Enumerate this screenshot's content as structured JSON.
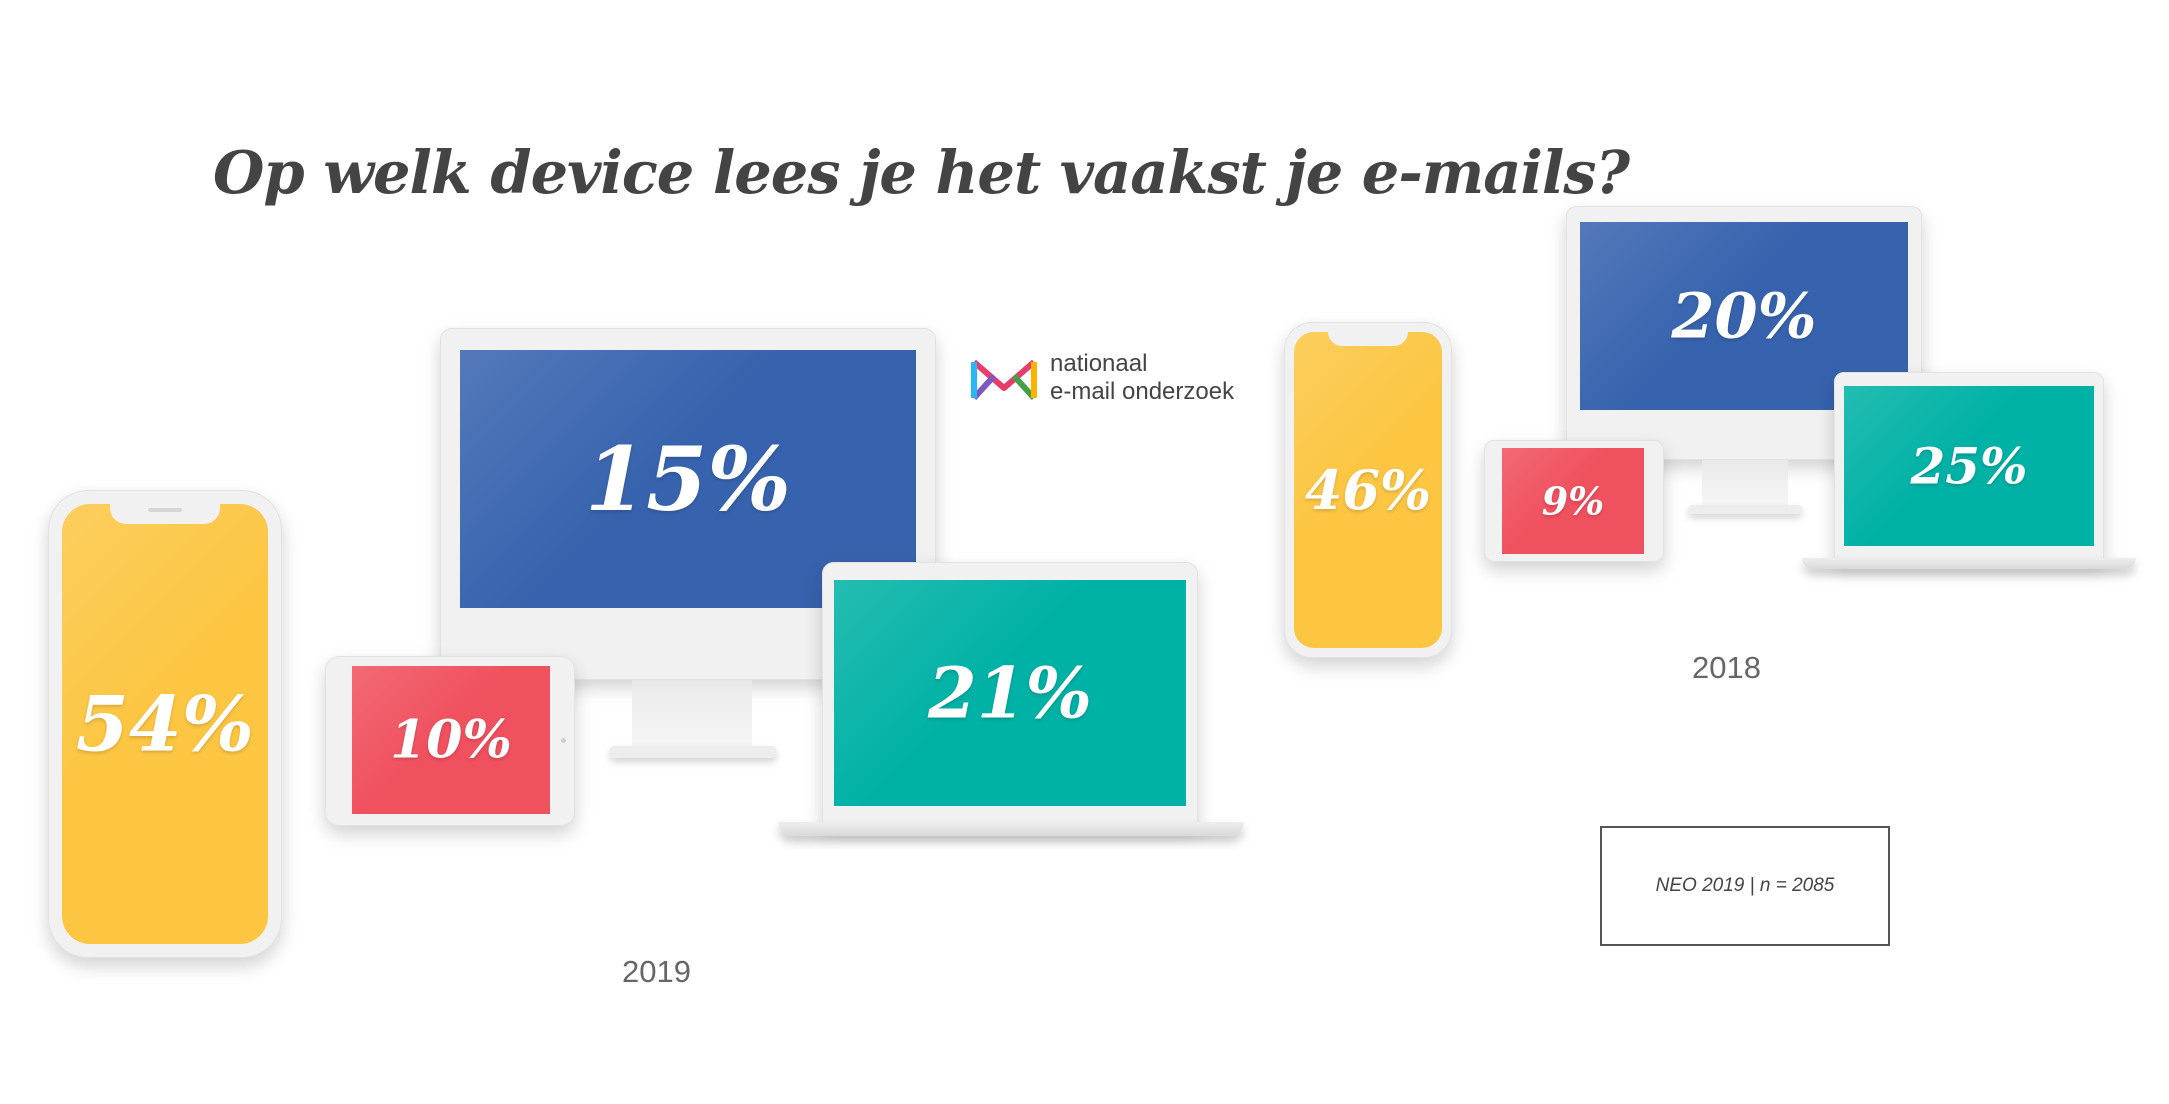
{
  "title": "Op welk device lees je het vaakst je e-mails?",
  "logo": {
    "line1": "nationaal",
    "line2": "e-mail onderzoek"
  },
  "colors": {
    "smartphone": "#FCC643",
    "desktop": "#3763AE",
    "tablet": "#F0515F",
    "laptop": "#00B1A5",
    "frame": "#F1F1F1",
    "text": "#444444"
  },
  "chart_data": [
    {
      "type": "table",
      "year_label": "2019",
      "categories": [
        "smartphone",
        "desktop",
        "tablet",
        "laptop"
      ],
      "values": [
        54,
        15,
        10,
        21
      ],
      "labels": {
        "smartphone": "54%",
        "desktop": "15%",
        "tablet": "10%",
        "laptop": "21%"
      }
    },
    {
      "type": "table",
      "year_label": "2018",
      "categories": [
        "smartphone",
        "desktop",
        "tablet",
        "laptop"
      ],
      "values": [
        46,
        20,
        9,
        25
      ],
      "labels": {
        "smartphone": "46%",
        "desktop": "20%",
        "tablet": "9%",
        "laptop": "25%"
      }
    }
  ],
  "source_note": "NEO 2019 | n = 2085"
}
